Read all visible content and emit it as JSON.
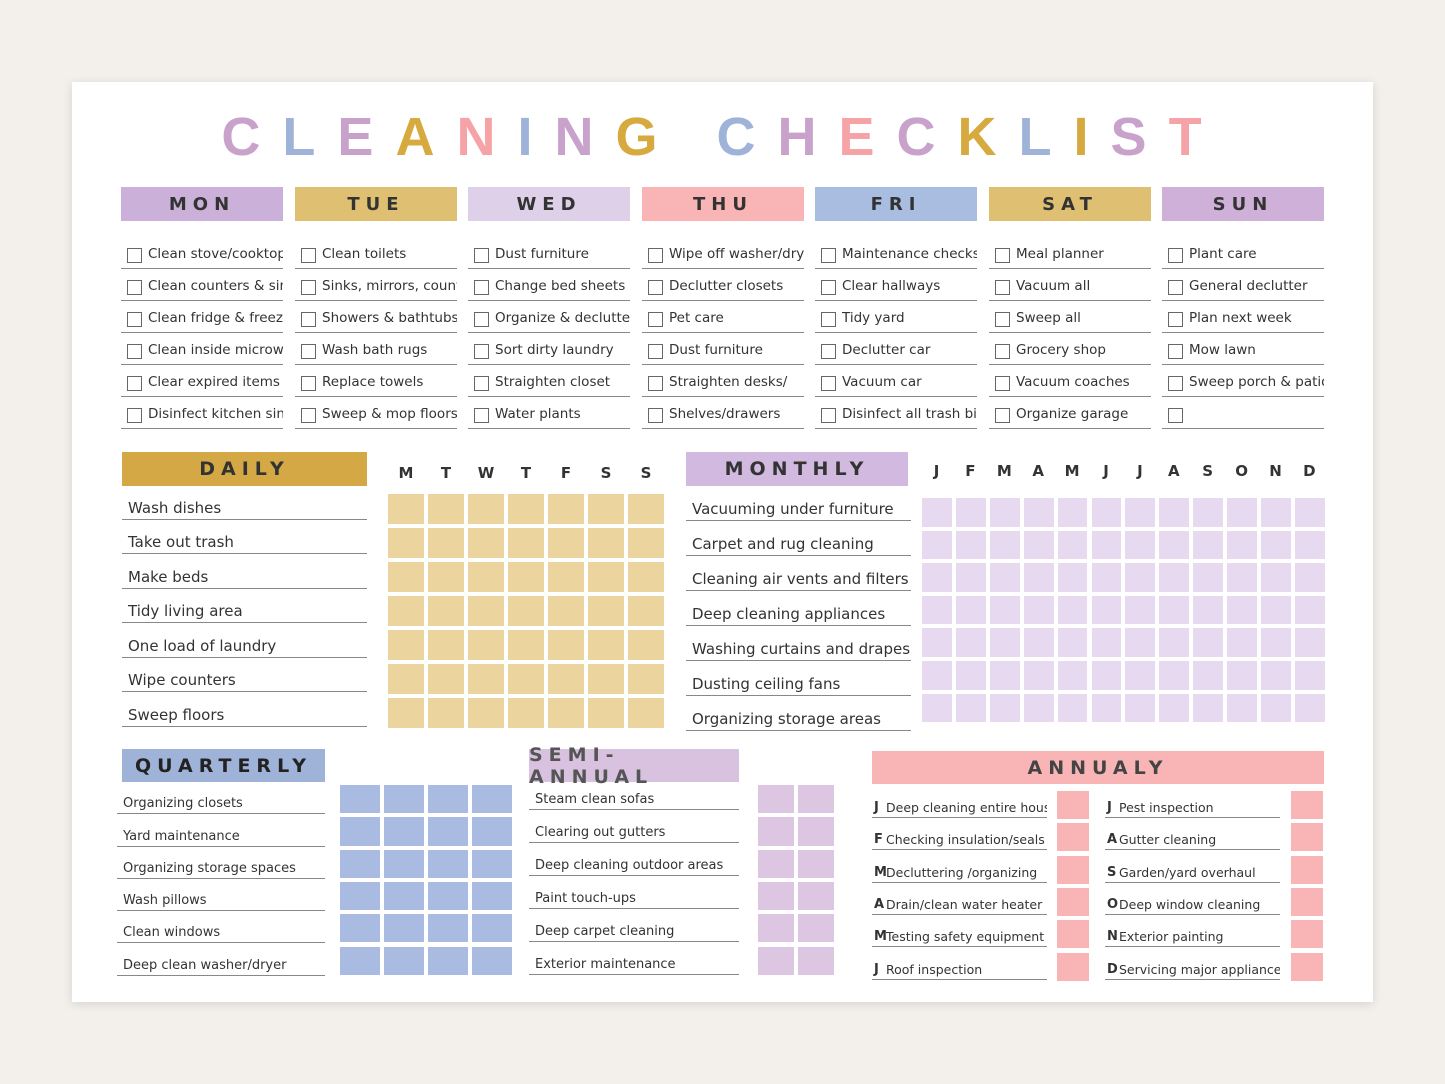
{
  "title": "CLEANING CHECKLIST",
  "weekly": [
    {
      "day": "MON",
      "tasks": [
        "Clean stove/cooktop",
        "Clean counters & sink",
        "Clean fridge & freezer",
        "Clean inside microwave",
        "Clear expired items",
        "Disinfect kitchen sink"
      ]
    },
    {
      "day": "TUE",
      "tasks": [
        "Clean toilets",
        "Sinks, mirrors, counters",
        "Showers & bathtubs",
        "Wash bath rugs",
        "Replace towels",
        "Sweep & mop floors"
      ]
    },
    {
      "day": "WED",
      "tasks": [
        "Dust furniture",
        "Change bed sheets",
        "Organize & declutter",
        "Sort dirty laundry",
        "Straighten closet",
        "Water plants"
      ]
    },
    {
      "day": "THU",
      "tasks": [
        "Wipe off washer/dryer",
        "Declutter closets",
        "Pet care",
        "Dust furniture",
        "Straighten desks/",
        "Shelves/drawers"
      ]
    },
    {
      "day": "FRI",
      "tasks": [
        "Maintenance checks",
        "Clear hallways",
        "Tidy yard",
        "Declutter car",
        "Vacuum car",
        "Disinfect all trash bins"
      ]
    },
    {
      "day": "SAT",
      "tasks": [
        "Meal planner",
        "Vacuum all",
        "Sweep all",
        "Grocery shop",
        "Vacuum coaches",
        "Organize garage"
      ]
    },
    {
      "day": "SUN",
      "tasks": [
        "Plant care",
        "General declutter",
        "Plan next week",
        "Mow lawn",
        "Sweep porch & patio"
      ]
    }
  ],
  "daily": {
    "title": "DAILY",
    "columns": [
      "M",
      "T",
      "W",
      "T",
      "F",
      "S",
      "S"
    ],
    "tasks": [
      "Wash dishes",
      "Take out trash",
      "Make beds",
      "Tidy living area",
      "One load of laundry",
      "Wipe counters",
      "Sweep floors"
    ]
  },
  "monthly": {
    "title": "MONTHLY",
    "columns": [
      "J",
      "F",
      "M",
      "A",
      "M",
      "J",
      "J",
      "A",
      "S",
      "O",
      "N",
      "D"
    ],
    "tasks": [
      "Vacuuming under furniture",
      "Carpet and rug cleaning",
      "Cleaning air vents and filters",
      "Deep cleaning appliances",
      "Washing curtains and drapes",
      "Dusting ceiling fans",
      "Organizing storage areas"
    ]
  },
  "quarterly": {
    "title": "QUARTERLY",
    "tasks": [
      "Organizing closets",
      "Yard maintenance",
      "Organizing storage spaces",
      "Wash pillows",
      "Clean windows",
      "Deep clean washer/dryer"
    ]
  },
  "semi_annual": {
    "title": "SEMI-ANNUAL",
    "tasks": [
      "Steam clean sofas",
      "Clearing out gutters",
      "Deep cleaning outdoor areas",
      "Paint touch-ups",
      "Deep carpet cleaning",
      "Exterior maintenance"
    ]
  },
  "annually": {
    "title": "ANNUALY",
    "items": [
      {
        "letter": "J",
        "task": "Deep cleaning entire house"
      },
      {
        "letter": "F",
        "task": "Checking insulation/seals"
      },
      {
        "letter": "M",
        "task": "Decluttering /organizing"
      },
      {
        "letter": "A",
        "task": "Drain/clean water heater"
      },
      {
        "letter": "M",
        "task": "Testing safety equipment"
      },
      {
        "letter": "J",
        "task": "Roof inspection"
      },
      {
        "letter": "J",
        "task": "Pest inspection"
      },
      {
        "letter": "A",
        "task": "Gutter cleaning"
      },
      {
        "letter": "S",
        "task": "Garden/yard overhaul"
      },
      {
        "letter": "O",
        "task": "Deep window cleaning"
      },
      {
        "letter": "N",
        "task": "Exterior painting"
      },
      {
        "letter": "D",
        "task": "Servicing major appliances"
      }
    ]
  }
}
